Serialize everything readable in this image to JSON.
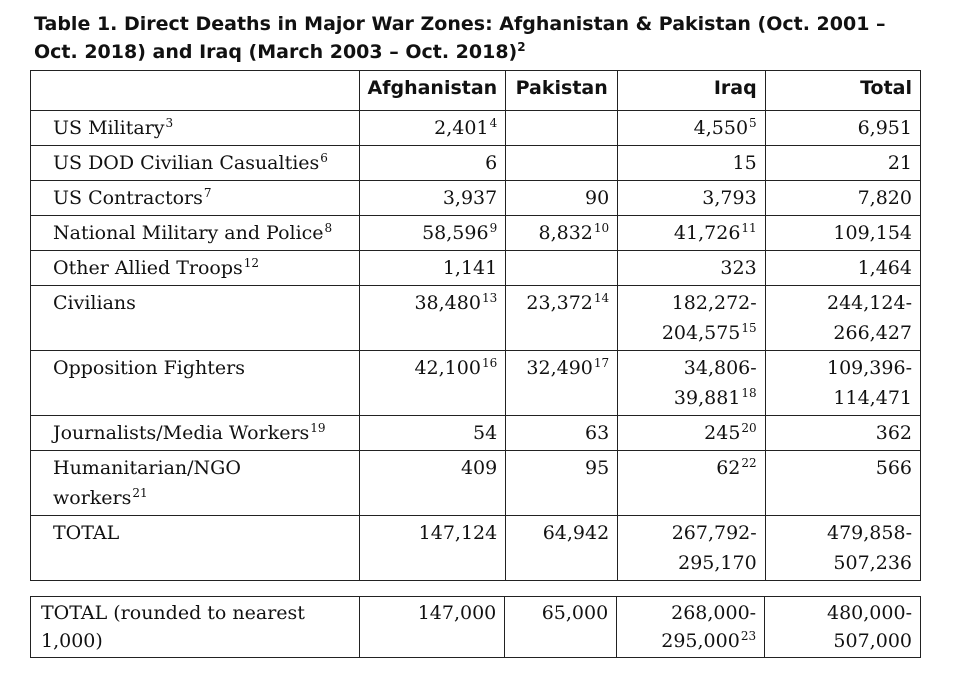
{
  "title": {
    "text": "Table 1. Direct Deaths in Major War Zones: Afghanistan & Pakistan (Oct. 2001 – Oct. 2018) and Iraq (March 2003 – Oct. 2018)",
    "footnote": "2"
  },
  "headers": [
    "",
    "Afghanistan",
    "Pakistan",
    "Iraq",
    "Total"
  ],
  "rows": [
    {
      "label": "US Military",
      "label_fn": "3",
      "afghanistan": "2,401",
      "afghanistan_fn": "4",
      "pakistan": "",
      "pakistan_fn": "",
      "iraq": "4,550",
      "iraq_fn": "5",
      "total": "6,951"
    },
    {
      "label": "US DOD Civilian Casualties",
      "label_fn": "6",
      "afghanistan": "6",
      "afghanistan_fn": "",
      "pakistan": "",
      "pakistan_fn": "",
      "iraq": "15",
      "iraq_fn": "",
      "total": "21"
    },
    {
      "label": "US Contractors",
      "label_fn": "7",
      "afghanistan": "3,937",
      "afghanistan_fn": "",
      "pakistan": "90",
      "pakistan_fn": "",
      "iraq": "3,793",
      "iraq_fn": "",
      "total": "7,820"
    },
    {
      "label": "National Military and Police",
      "label_fn": "8",
      "afghanistan": "58,596",
      "afghanistan_fn": "9",
      "pakistan": "8,832",
      "pakistan_fn": "10",
      "iraq": "41,726",
      "iraq_fn": "11",
      "total": "109,154"
    },
    {
      "label": "Other Allied Troops",
      "label_fn": "12",
      "afghanistan": "1,141",
      "afghanistan_fn": "",
      "pakistan": "",
      "pakistan_fn": "",
      "iraq": "323",
      "iraq_fn": "",
      "total": "1,464"
    },
    {
      "label": "Civilians",
      "label_fn": "",
      "afghanistan": "38,480",
      "afghanistan_fn": "13",
      "pakistan": "23,372",
      "pakistan_fn": "14",
      "iraq": "182,272-\n204,575",
      "iraq_fn": "15",
      "total": "244,124-\n266,427"
    },
    {
      "label": "Opposition Fighters",
      "label_fn": "",
      "afghanistan": "42,100",
      "afghanistan_fn": "16",
      "pakistan": "32,490",
      "pakistan_fn": "17",
      "iraq": "34,806-\n39,881",
      "iraq_fn": "18",
      "total": "109,396-\n114,471"
    },
    {
      "label": "Journalists/Media Workers",
      "label_fn": "19",
      "afghanistan": "54",
      "afghanistan_fn": "",
      "pakistan": "63",
      "pakistan_fn": "",
      "iraq": "245",
      "iraq_fn": "20",
      "total": "362"
    },
    {
      "label": "Humanitarian/NGO\nworkers",
      "label_fn": "21",
      "afghanistan": "409",
      "afghanistan_fn": "",
      "pakistan": "95",
      "pakistan_fn": "",
      "iraq": "62",
      "iraq_fn": "22",
      "total": "566"
    },
    {
      "label": "TOTAL",
      "label_fn": "",
      "afghanistan": "147,124",
      "afghanistan_fn": "",
      "pakistan": "64,942",
      "pakistan_fn": "",
      "iraq": "267,792-\n295,170",
      "iraq_fn": "",
      "total": "479,858-\n507,236"
    }
  ],
  "rounded_row": {
    "label": "TOTAL (rounded to nearest\n1,000)",
    "afghanistan": "147,000",
    "pakistan": "65,000",
    "iraq": "268,000-\n295,000",
    "iraq_fn": "23",
    "total": "480,000-\n507,000"
  }
}
